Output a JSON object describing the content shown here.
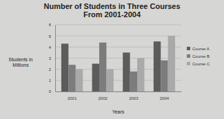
{
  "chart_data": {
    "type": "bar",
    "title": "Number of Students in Three Courses From 2001-2004",
    "x_label": "Years",
    "y_label": "Students in Millions",
    "categories": [
      "2001",
      "2002",
      "2003",
      "2004"
    ],
    "series": [
      {
        "name": "Course A",
        "color": "#5c5c5c",
        "values": [
          4.3,
          2.5,
          3.5,
          4.5
        ]
      },
      {
        "name": "Course B",
        "color": "#7c7c7c",
        "values": [
          2.4,
          4.4,
          1.8,
          2.8
        ]
      },
      {
        "name": "Course C",
        "color": "#a9a9a9",
        "values": [
          2,
          2,
          3,
          5
        ]
      }
    ],
    "ylim": [
      0,
      6
    ],
    "yticks": [
      0,
      1,
      2,
      3,
      4,
      5,
      6
    ],
    "grid": true,
    "legend": "right"
  }
}
